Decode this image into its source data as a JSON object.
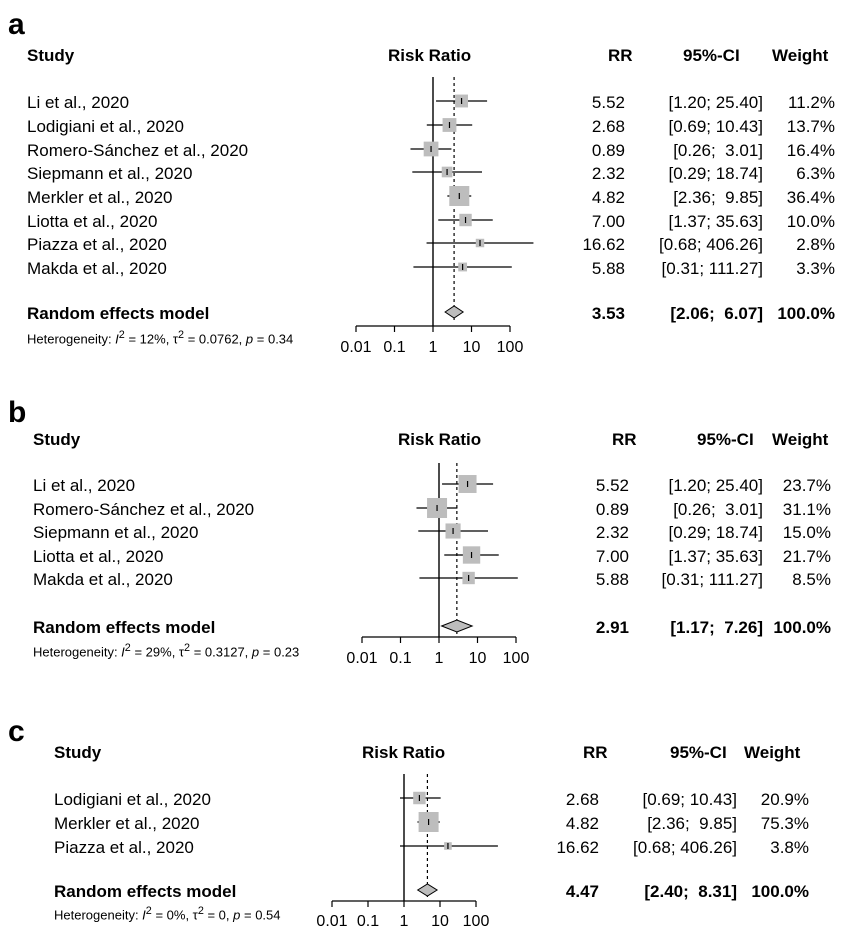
{
  "chart_data": [
    {
      "type": "forest",
      "panel_label": "a",
      "header": {
        "study": "Study",
        "measure": "Risk Ratio",
        "rr": "RR",
        "ci": "95%-CI",
        "weight": "Weight"
      },
      "studies": [
        {
          "name": "Li et al., 2020",
          "rr": 5.52,
          "lower": 1.2,
          "upper": 25.4,
          "rr_text": "5.52",
          "ci_text": "[1.20; 25.40]",
          "weight_text": "11.2%",
          "weight": 11.2
        },
        {
          "name": "Lodigiani et al., 2020",
          "rr": 2.68,
          "lower": 0.69,
          "upper": 10.43,
          "rr_text": "2.68",
          "ci_text": "[0.69; 10.43]",
          "weight_text": "13.7%",
          "weight": 13.7
        },
        {
          "name": "Romero-Sánchez et al., 2020",
          "rr": 0.89,
          "lower": 0.26,
          "upper": 3.01,
          "rr_text": "0.89",
          "ci_text": "[0.26;  3.01]",
          "weight_text": "16.4%",
          "weight": 16.4
        },
        {
          "name": "Siepmann et al., 2020",
          "rr": 2.32,
          "lower": 0.29,
          "upper": 18.74,
          "rr_text": "2.32",
          "ci_text": "[0.29; 18.74]",
          "weight_text": "6.3%",
          "weight": 6.3
        },
        {
          "name": "Merkler et al., 2020",
          "rr": 4.82,
          "lower": 2.36,
          "upper": 9.85,
          "rr_text": "4.82",
          "ci_text": "[2.36;  9.85]",
          "weight_text": "36.4%",
          "weight": 36.4
        },
        {
          "name": "Liotta et al., 2020",
          "rr": 7.0,
          "lower": 1.37,
          "upper": 35.63,
          "rr_text": "7.00",
          "ci_text": "[1.37; 35.63]",
          "weight_text": "10.0%",
          "weight": 10.0
        },
        {
          "name": "Piazza et al., 2020",
          "rr": 16.62,
          "lower": 0.68,
          "upper": 406.26,
          "rr_text": "16.62",
          "ci_text": "[0.68; 406.26]",
          "weight_text": "2.8%",
          "weight": 2.8
        },
        {
          "name": "Makda et al., 2020",
          "rr": 5.88,
          "lower": 0.31,
          "upper": 111.27,
          "rr_text": "5.88",
          "ci_text": "[0.31; 111.27]",
          "weight_text": "3.3%",
          "weight": 3.3
        }
      ],
      "model": {
        "name": "Random effects model",
        "rr": 3.53,
        "lower": 2.06,
        "upper": 6.07,
        "rr_text": "3.53",
        "ci_text": "[2.06;  6.07]",
        "weight_text": "100.0%"
      },
      "heterogeneity": {
        "prefix": "Heterogeneity: ",
        "i2": "12%",
        "tau2": "0.0762",
        "p": "0.34"
      },
      "x_scale": "log",
      "xlim": [
        0.01,
        100
      ],
      "x_ticks": [
        0.01,
        0.1,
        1,
        10,
        100
      ],
      "x_tick_labels": [
        "0.01",
        "0.1",
        "1",
        "10",
        "100"
      ]
    },
    {
      "type": "forest",
      "panel_label": "b",
      "header": {
        "study": "Study",
        "measure": "Risk Ratio",
        "rr": "RR",
        "ci": "95%-CI",
        "weight": "Weight"
      },
      "studies": [
        {
          "name": "Li et al., 2020",
          "rr": 5.52,
          "lower": 1.2,
          "upper": 25.4,
          "rr_text": "5.52",
          "ci_text": "[1.20; 25.40]",
          "weight_text": "23.7%",
          "weight": 23.7
        },
        {
          "name": "Romero-Sánchez et al., 2020",
          "rr": 0.89,
          "lower": 0.26,
          "upper": 3.01,
          "rr_text": "0.89",
          "ci_text": "[0.26;  3.01]",
          "weight_text": "31.1%",
          "weight": 31.1
        },
        {
          "name": "Siepmann et al., 2020",
          "rr": 2.32,
          "lower": 0.29,
          "upper": 18.74,
          "rr_text": "2.32",
          "ci_text": "[0.29; 18.74]",
          "weight_text": "15.0%",
          "weight": 15.0
        },
        {
          "name": "Liotta et al., 2020",
          "rr": 7.0,
          "lower": 1.37,
          "upper": 35.63,
          "rr_text": "7.00",
          "ci_text": "[1.37; 35.63]",
          "weight_text": "21.7%",
          "weight": 21.7
        },
        {
          "name": "Makda et al., 2020",
          "rr": 5.88,
          "lower": 0.31,
          "upper": 111.27,
          "rr_text": "5.88",
          "ci_text": "[0.31; 111.27]",
          "weight_text": "8.5%",
          "weight": 8.5
        }
      ],
      "model": {
        "name": "Random effects model",
        "rr": 2.91,
        "lower": 1.17,
        "upper": 7.26,
        "rr_text": "2.91",
        "ci_text": "[1.17;  7.26]",
        "weight_text": "100.0%"
      },
      "heterogeneity": {
        "prefix": "Heterogeneity: ",
        "i2": "29%",
        "tau2": "0.3127",
        "p": "0.23"
      },
      "x_scale": "log",
      "xlim": [
        0.01,
        100
      ],
      "x_ticks": [
        0.01,
        0.1,
        1,
        10,
        100
      ],
      "x_tick_labels": [
        "0.01",
        "0.1",
        "1",
        "10",
        "100"
      ]
    },
    {
      "type": "forest",
      "panel_label": "c",
      "header": {
        "study": "Study",
        "measure": "Risk Ratio",
        "rr": "RR",
        "ci": "95%-CI",
        "weight": "Weight"
      },
      "studies": [
        {
          "name": "Lodigiani et al., 2020",
          "rr": 2.68,
          "lower": 0.69,
          "upper": 10.43,
          "rr_text": "2.68",
          "ci_text": "[0.69; 10.43]",
          "weight_text": "20.9%",
          "weight": 20.9
        },
        {
          "name": "Merkler et al., 2020",
          "rr": 4.82,
          "lower": 2.36,
          "upper": 9.85,
          "rr_text": "4.82",
          "ci_text": "[2.36;  9.85]",
          "weight_text": "75.3%",
          "weight": 75.3
        },
        {
          "name": "Piazza et al., 2020",
          "rr": 16.62,
          "lower": 0.68,
          "upper": 406.26,
          "rr_text": "16.62",
          "ci_text": "[0.68; 406.26]",
          "weight_text": "3.8%",
          "weight": 3.8
        }
      ],
      "model": {
        "name": "Random effects model",
        "rr": 4.47,
        "lower": 2.4,
        "upper": 8.31,
        "rr_text": "4.47",
        "ci_text": "[2.40;  8.31]",
        "weight_text": "100.0%"
      },
      "heterogeneity": {
        "prefix": "Heterogeneity: ",
        "i2": "0%",
        "tau2": "0",
        "p": "0.54"
      },
      "x_scale": "log",
      "xlim": [
        0.01,
        100
      ],
      "x_ticks": [
        0.01,
        0.1,
        1,
        10,
        100
      ],
      "x_tick_labels": [
        "0.01",
        "0.1",
        "1",
        "10",
        "100"
      ]
    }
  ],
  "colors": {
    "square": "#bdbdbd",
    "diamond": "#bdbdbd",
    "line": "#000000"
  }
}
